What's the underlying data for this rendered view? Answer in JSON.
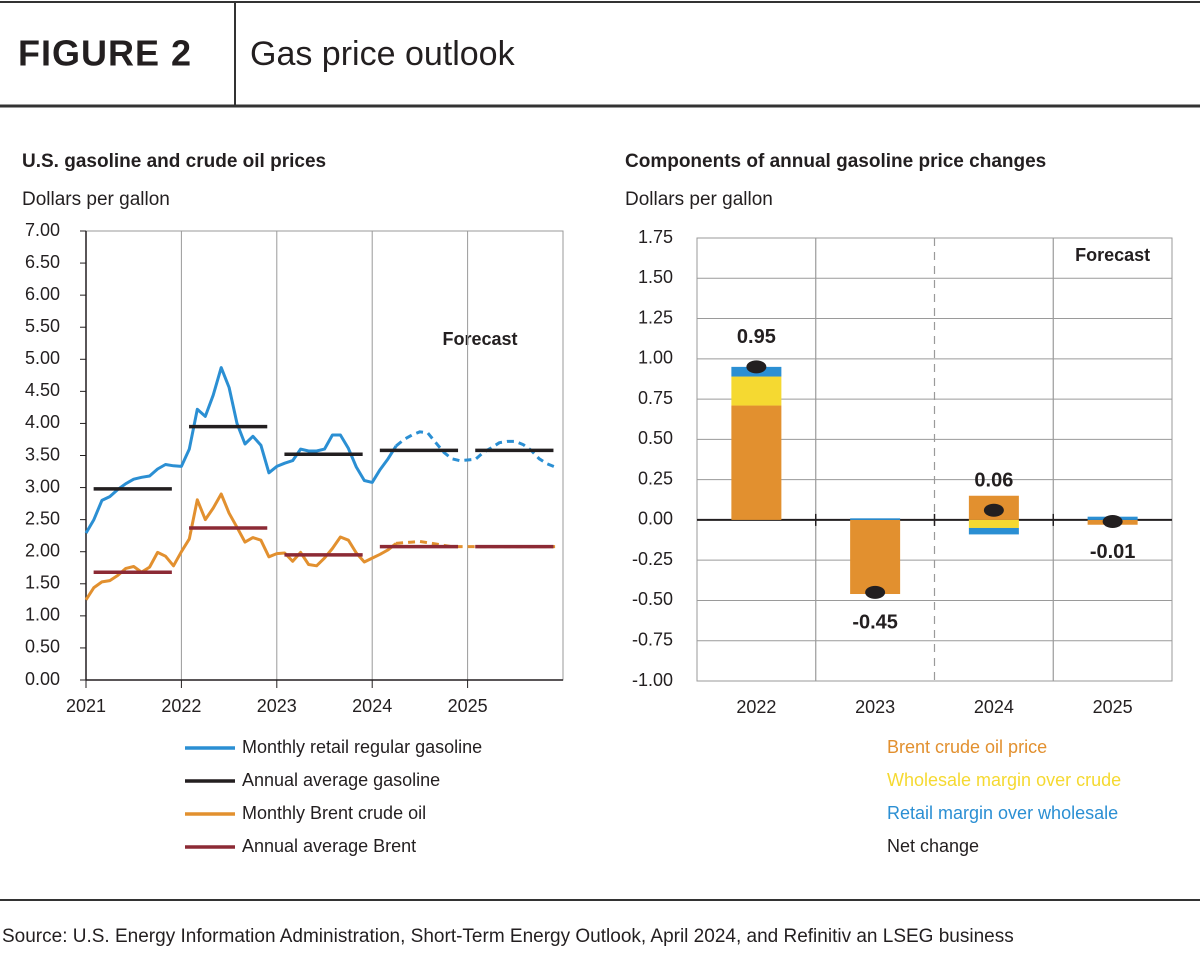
{
  "header": {
    "label": "FIGURE 2",
    "title": "Gas price outlook"
  },
  "chart_data": [
    {
      "type": "line",
      "title": "U.S. gasoline and crude oil prices",
      "ylabel": "Dollars per gallon",
      "annotation": "Forecast",
      "x": [
        2021,
        2021.083,
        2021.167,
        2021.25,
        2021.333,
        2021.417,
        2021.5,
        2021.583,
        2021.667,
        2021.75,
        2021.833,
        2021.917,
        2022,
        2022.083,
        2022.167,
        2022.25,
        2022.333,
        2022.417,
        2022.5,
        2022.583,
        2022.667,
        2022.75,
        2022.833,
        2022.917,
        2023,
        2023.083,
        2023.167,
        2023.25,
        2023.333,
        2023.417,
        2023.5,
        2023.583,
        2023.667,
        2023.75,
        2023.833,
        2023.917,
        2024,
        2024.083,
        2024.167,
        2024.25,
        2024.333,
        2024.417,
        2024.5,
        2024.583,
        2024.667,
        2024.75,
        2024.833,
        2024.917,
        2025,
        2025.083,
        2025.167,
        2025.25,
        2025.333,
        2025.417,
        2025.5,
        2025.583,
        2025.667,
        2025.75,
        2025.833,
        2025.917
      ],
      "xlim": [
        2021,
        2026
      ],
      "xticks": [
        2021,
        2022,
        2023,
        2024,
        2025
      ],
      "ylim": [
        0,
        7
      ],
      "yticks": [
        {
          "value": 0,
          "label": "0.00"
        },
        {
          "value": 0.5,
          "label": "0.50"
        },
        {
          "value": 1,
          "label": "1.00"
        },
        {
          "value": 1.5,
          "label": "1.50"
        },
        {
          "value": 2,
          "label": "2.00"
        },
        {
          "value": 2.5,
          "label": "2.50"
        },
        {
          "value": 3,
          "label": "3.00"
        },
        {
          "value": 3.5,
          "label": "3.50"
        },
        {
          "value": 4,
          "label": "4.00"
        },
        {
          "value": 4.5,
          "label": "4.50"
        },
        {
          "value": 5,
          "label": "5.00"
        },
        {
          "value": 5.5,
          "label": "5.50"
        },
        {
          "value": 6,
          "label": "6.00"
        },
        {
          "value": 6.5,
          "label": "6.50"
        },
        {
          "value": 7,
          "label": "7.00"
        }
      ],
      "dashed_from_x": 2024.25,
      "grid": true,
      "series": [
        {
          "name": "Monthly retail regular gasoline",
          "color": "#2b8fd3",
          "values": [
            2.29,
            2.5,
            2.8,
            2.86,
            2.97,
            3.06,
            3.13,
            3.16,
            3.18,
            3.29,
            3.36,
            3.34,
            3.33,
            3.6,
            4.22,
            4.11,
            4.44,
            4.87,
            4.56,
            4.0,
            3.68,
            3.8,
            3.66,
            3.23,
            3.33,
            3.38,
            3.42,
            3.6,
            3.57,
            3.57,
            3.6,
            3.82,
            3.82,
            3.61,
            3.32,
            3.11,
            3.08,
            3.28,
            3.45,
            3.65,
            3.75,
            3.82,
            3.87,
            3.85,
            3.7,
            3.55,
            3.45,
            3.42,
            3.43,
            3.44,
            3.55,
            3.62,
            3.7,
            3.72,
            3.72,
            3.67,
            3.58,
            3.45,
            3.37,
            3.32
          ]
        },
        {
          "name": "Annual average gasoline",
          "color": "#231f20",
          "style": "annual",
          "x": [
            2021,
            2022,
            2023,
            2024,
            2025
          ],
          "values": [
            2.98,
            3.95,
            3.52,
            3.58,
            3.58
          ]
        },
        {
          "name": "Monthly Brent crude oil",
          "color": "#e2902f",
          "values": [
            1.25,
            1.44,
            1.53,
            1.55,
            1.63,
            1.74,
            1.77,
            1.68,
            1.76,
            1.99,
            1.93,
            1.78,
            2.0,
            2.2,
            2.81,
            2.5,
            2.68,
            2.9,
            2.6,
            2.38,
            2.15,
            2.22,
            2.18,
            1.92,
            1.97,
            1.98,
            1.85,
            1.99,
            1.8,
            1.78,
            1.9,
            2.05,
            2.23,
            2.18,
            1.98,
            1.84,
            1.9,
            1.96,
            2.03,
            2.13,
            2.14,
            2.15,
            2.16,
            2.14,
            2.12,
            2.1,
            2.08,
            2.08,
            2.08,
            2.08,
            2.08,
            2.08,
            2.08,
            2.08,
            2.08,
            2.08,
            2.08,
            2.08,
            2.08,
            2.08
          ]
        },
        {
          "name": "Annual average Brent",
          "color": "#8c2a35",
          "style": "annual",
          "x": [
            2021,
            2022,
            2023,
            2024,
            2025
          ],
          "values": [
            1.68,
            2.37,
            1.95,
            2.08,
            2.08
          ]
        }
      ]
    },
    {
      "type": "bar",
      "stacked": true,
      "title": "Components of annual gasoline price changes",
      "ylabel": "Dollars per gallon",
      "annotation": "Forecast",
      "categories": [
        "2022",
        "2023",
        "2024",
        "2025"
      ],
      "ylim": [
        -1,
        1.75
      ],
      "yticks": [
        {
          "value": -1,
          "label": "-1.00"
        },
        -0.75,
        {
          "value": -0.5,
          "label": "-0.50"
        },
        -0.25,
        {
          "value": 0,
          "label": "0.00"
        },
        0.25,
        {
          "value": 0.5,
          "label": "0.50"
        },
        0.75,
        {
          "value": 1,
          "label": "1.00"
        },
        1.25,
        {
          "value": 1.5,
          "label": "1.50"
        },
        1.75
      ],
      "grid": true,
      "series": [
        {
          "name": "Brent crude oil price",
          "color": "#e2902f",
          "values": [
            0.71,
            -0.46,
            0.15,
            -0.03
          ]
        },
        {
          "name": "Wholesale margin over crude",
          "color": "#f5d931",
          "values": [
            0.18,
            0,
            -0.05,
            0
          ]
        },
        {
          "name": "Retail margin over wholesale",
          "color": "#2b8fd3",
          "values": [
            0.06,
            0.01,
            -0.04,
            0.02
          ]
        }
      ],
      "net": {
        "name": "Net change",
        "color": "#231f20",
        "values": [
          0.95,
          -0.45,
          0.06,
          -0.01
        ]
      }
    }
  ],
  "source": "Source: U.S. Energy Information Administration, Short-Term Energy Outlook, April 2024, and Refinitiv an LSEG business"
}
